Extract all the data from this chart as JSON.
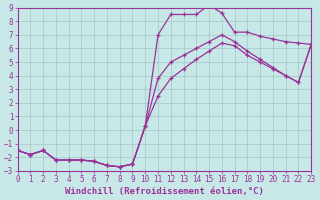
{
  "background_color": "#c8e8e8",
  "grid_color": "#a8cccc",
  "line_color": "#993399",
  "xlabel": "Windchill (Refroidissement éolien,°C)",
  "xlim": [
    0,
    23
  ],
  "ylim": [
    -3,
    9
  ],
  "xticks": [
    0,
    1,
    2,
    3,
    4,
    5,
    6,
    7,
    8,
    9,
    10,
    11,
    12,
    13,
    14,
    15,
    16,
    17,
    18,
    19,
    20,
    21,
    22,
    23
  ],
  "yticks": [
    -3,
    -2,
    -1,
    0,
    1,
    2,
    3,
    4,
    5,
    6,
    7,
    8,
    9
  ],
  "curve1_x": [
    0,
    1,
    2,
    3,
    4,
    5,
    6,
    7,
    8,
    9,
    10,
    11,
    12,
    13,
    14,
    15,
    16,
    17,
    18,
    19,
    20,
    21,
    22,
    23
  ],
  "curve1_y": [
    -1.5,
    -1.8,
    -1.5,
    -2.2,
    -2.2,
    -2.2,
    -2.3,
    -2.6,
    -2.7,
    -2.5,
    0.3,
    7.0,
    8.5,
    8.5,
    8.5,
    9.2,
    8.6,
    7.2,
    7.2,
    6.9,
    6.7,
    6.5,
    6.4,
    6.3
  ],
  "curve2_x": [
    0,
    1,
    2,
    3,
    4,
    5,
    6,
    7,
    8,
    9,
    10,
    11,
    12,
    13,
    14,
    15,
    16,
    17,
    18,
    19,
    20,
    21,
    22,
    23
  ],
  "curve2_y": [
    -1.5,
    -1.8,
    -1.5,
    -2.2,
    -2.2,
    -2.2,
    -2.3,
    -2.6,
    -2.7,
    -2.5,
    0.3,
    3.8,
    5.0,
    5.5,
    6.0,
    6.5,
    7.0,
    6.5,
    5.8,
    5.2,
    4.6,
    4.0,
    3.5,
    6.3
  ],
  "curve3_x": [
    0,
    1,
    2,
    3,
    4,
    5,
    6,
    7,
    8,
    9,
    10,
    11,
    12,
    13,
    14,
    15,
    16,
    17,
    18,
    19,
    20,
    21,
    22,
    23
  ],
  "curve3_y": [
    -1.5,
    -1.8,
    -1.5,
    -2.2,
    -2.2,
    -2.2,
    -2.3,
    -2.6,
    -2.7,
    -2.5,
    0.3,
    2.5,
    3.8,
    4.5,
    5.2,
    5.8,
    6.4,
    6.2,
    5.5,
    5.0,
    4.5,
    4.0,
    3.5,
    6.3
  ],
  "font_size_label": 6.5,
  "font_size_tick": 5.5
}
